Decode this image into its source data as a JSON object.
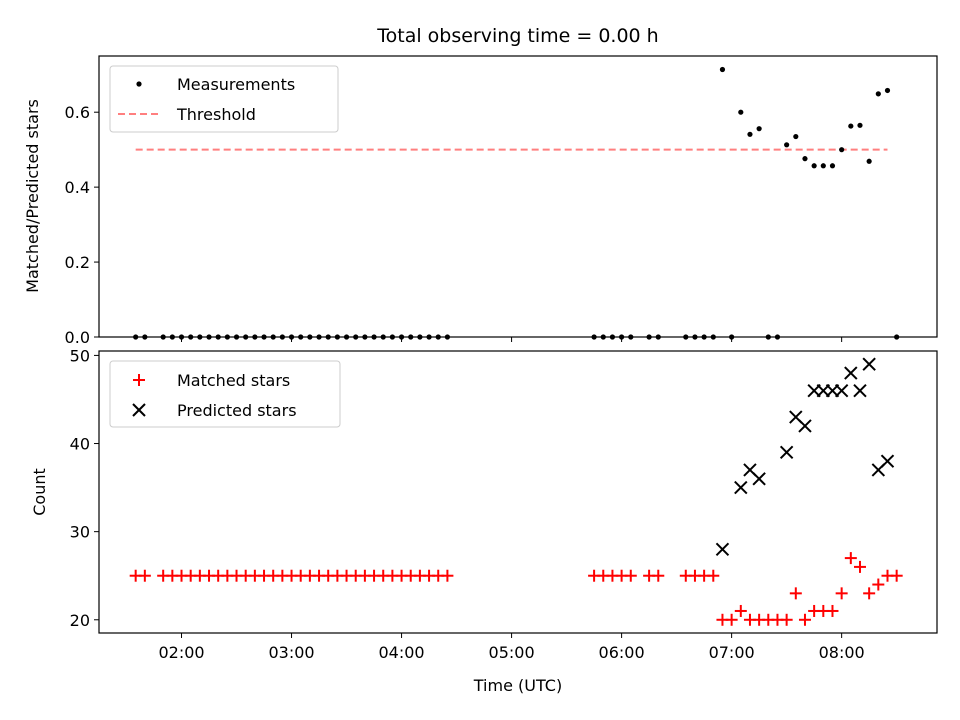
{
  "figure": {
    "title": "Total observing time = 0.00 h"
  },
  "chart_data": [
    {
      "type": "scatter",
      "panel": "top",
      "ylabel": "Matched/Predicted stars",
      "xlabel": "",
      "xlim": [
        "01:15",
        "08:52"
      ],
      "ylim": [
        0,
        0.75
      ],
      "yticks": [
        0.0,
        0.2,
        0.4,
        0.6
      ],
      "ytick_labels": [
        "0.0",
        "0.2",
        "0.4",
        "0.6"
      ],
      "legend_position": "top-left",
      "series": [
        {
          "name": "Measurements",
          "marker": "dot",
          "color": "#000000",
          "x": [
            "01:35",
            "01:40",
            "01:50",
            "01:55",
            "02:00",
            "02:05",
            "02:10",
            "02:15",
            "02:20",
            "02:25",
            "02:30",
            "02:35",
            "02:40",
            "02:45",
            "02:50",
            "02:55",
            "03:00",
            "03:05",
            "03:10",
            "03:15",
            "03:20",
            "03:25",
            "03:30",
            "03:35",
            "03:40",
            "03:45",
            "03:50",
            "03:55",
            "04:00",
            "04:05",
            "04:10",
            "04:15",
            "04:20",
            "04:25",
            "05:45",
            "05:50",
            "05:55",
            "06:00",
            "06:05",
            "06:15",
            "06:20",
            "06:35",
            "06:40",
            "06:45",
            "06:50",
            "06:55",
            "07:00",
            "07:05",
            "07:10",
            "07:15",
            "07:20",
            "07:25",
            "07:30",
            "07:35",
            "07:40",
            "07:45",
            "07:50",
            "07:55",
            "08:00",
            "08:05",
            "08:10",
            "08:15",
            "08:20",
            "08:25",
            "08:30"
          ],
          "y": [
            0,
            0,
            0,
            0,
            0,
            0,
            0,
            0,
            0,
            0,
            0,
            0,
            0,
            0,
            0,
            0,
            0,
            0,
            0,
            0,
            0,
            0,
            0,
            0,
            0,
            0,
            0,
            0,
            0,
            0,
            0,
            0,
            0,
            0,
            0,
            0,
            0,
            0,
            0,
            0,
            0,
            0,
            0,
            0,
            0,
            0.714,
            0,
            0.6,
            0.541,
            0.556,
            0,
            0,
            0.513,
            0.535,
            0.476,
            0.457,
            0.457,
            0.457,
            0.5,
            0.563,
            0.565,
            0.469,
            0.649,
            0.658,
            0
          ]
        },
        {
          "name": "Threshold",
          "kind": "line",
          "dash": "dashed",
          "color": "#ff7f7f",
          "x": [
            "01:35",
            "08:25"
          ],
          "y": [
            0.5,
            0.5
          ]
        }
      ]
    },
    {
      "type": "scatter",
      "panel": "bottom",
      "ylabel": "Count",
      "xlabel": "Time (UTC)",
      "xlim": [
        "01:15",
        "08:52"
      ],
      "ylim": [
        18.5,
        50.5
      ],
      "yticks": [
        20,
        30,
        40,
        50
      ],
      "ytick_labels": [
        "20",
        "30",
        "40",
        "50"
      ],
      "xticks": [
        "02:00",
        "03:00",
        "04:00",
        "05:00",
        "06:00",
        "07:00",
        "08:00"
      ],
      "legend_position": "top-left",
      "series": [
        {
          "name": "Matched stars",
          "marker": "plus",
          "color": "#ff0000",
          "x": [
            "01:35",
            "01:40",
            "01:50",
            "01:55",
            "02:00",
            "02:05",
            "02:10",
            "02:15",
            "02:20",
            "02:25",
            "02:30",
            "02:35",
            "02:40",
            "02:45",
            "02:50",
            "02:55",
            "03:00",
            "03:05",
            "03:10",
            "03:15",
            "03:20",
            "03:25",
            "03:30",
            "03:35",
            "03:40",
            "03:45",
            "03:50",
            "03:55",
            "04:00",
            "04:05",
            "04:10",
            "04:15",
            "04:20",
            "04:25",
            "05:45",
            "05:50",
            "05:55",
            "06:00",
            "06:05",
            "06:15",
            "06:20",
            "06:35",
            "06:40",
            "06:45",
            "06:50",
            "06:55",
            "07:00",
            "07:05",
            "07:10",
            "07:15",
            "07:20",
            "07:25",
            "07:30",
            "07:35",
            "07:40",
            "07:45",
            "07:50",
            "07:55",
            "08:00",
            "08:05",
            "08:10",
            "08:15",
            "08:20",
            "08:25",
            "08:30"
          ],
          "y": [
            25,
            25,
            25,
            25,
            25,
            25,
            25,
            25,
            25,
            25,
            25,
            25,
            25,
            25,
            25,
            25,
            25,
            25,
            25,
            25,
            25,
            25,
            25,
            25,
            25,
            25,
            25,
            25,
            25,
            25,
            25,
            25,
            25,
            25,
            25,
            25,
            25,
            25,
            25,
            25,
            25,
            25,
            25,
            25,
            25,
            20,
            20,
            21,
            20,
            20,
            20,
            20,
            20,
            23,
            20,
            21,
            21,
            21,
            23,
            27,
            26,
            23,
            24,
            25,
            25
          ]
        },
        {
          "name": "Predicted stars",
          "marker": "x",
          "color": "#000000",
          "x": [
            "06:55",
            "07:05",
            "07:10",
            "07:15",
            "07:30",
            "07:35",
            "07:40",
            "07:45",
            "07:50",
            "07:55",
            "08:00",
            "08:05",
            "08:10",
            "08:15",
            "08:20",
            "08:25"
          ],
          "y": [
            28,
            35,
            37,
            36,
            39,
            43,
            42,
            46,
            46,
            46,
            46,
            48,
            46,
            49,
            37,
            38
          ]
        }
      ]
    }
  ]
}
